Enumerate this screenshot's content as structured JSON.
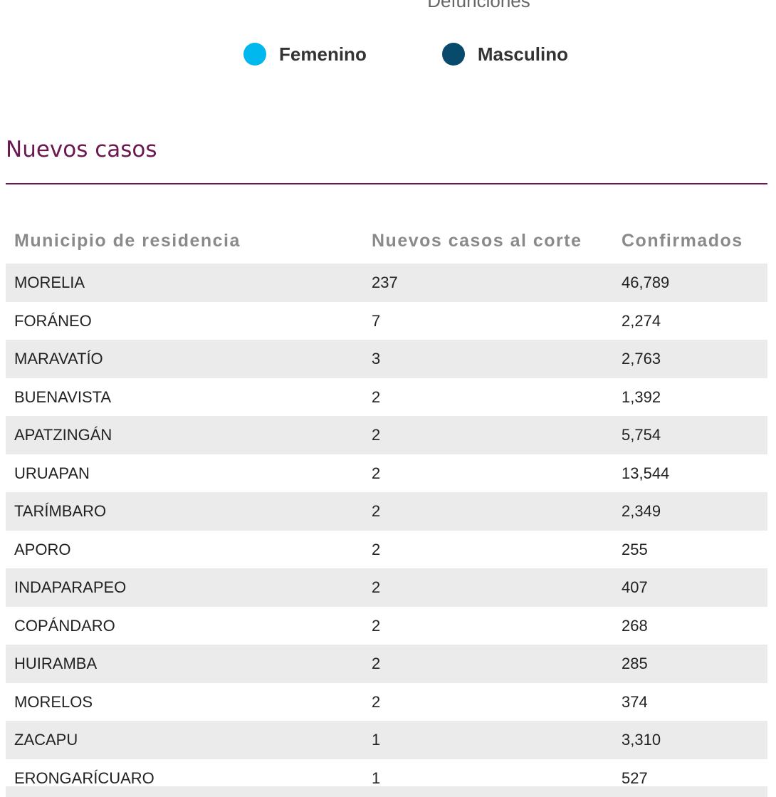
{
  "chart_caption": "Defunciones",
  "legend": [
    {
      "label": "Femenino",
      "color": "#00b8ee"
    },
    {
      "label": "Masculino",
      "color": "#074a6c"
    }
  ],
  "section_title": "Nuevos casos",
  "table": {
    "headers": [
      "Municipio de residencia",
      "Nuevos casos al corte",
      "Confirmados"
    ],
    "rows": [
      [
        "MORELIA",
        "237",
        "46,789"
      ],
      [
        "FORÁNEO",
        "7",
        "2,274"
      ],
      [
        "MARAVATÍO",
        "3",
        "2,763"
      ],
      [
        "BUENAVISTA",
        "2",
        "1,392"
      ],
      [
        "APATZINGÁN",
        "2",
        "5,754"
      ],
      [
        "URUAPAN",
        "2",
        "13,544"
      ],
      [
        "TARÍMBARO",
        "2",
        "2,349"
      ],
      [
        "APORO",
        "2",
        "255"
      ],
      [
        "INDAPARAPEO",
        "2",
        "407"
      ],
      [
        "COPÁNDARO",
        "2",
        "268"
      ],
      [
        "HUIRAMBA",
        "2",
        "285"
      ],
      [
        "MORELOS",
        "2",
        "374"
      ],
      [
        "ZACAPU",
        "1",
        "3,310"
      ],
      [
        "ERONGARÍCUARO",
        "1",
        "527"
      ]
    ]
  }
}
